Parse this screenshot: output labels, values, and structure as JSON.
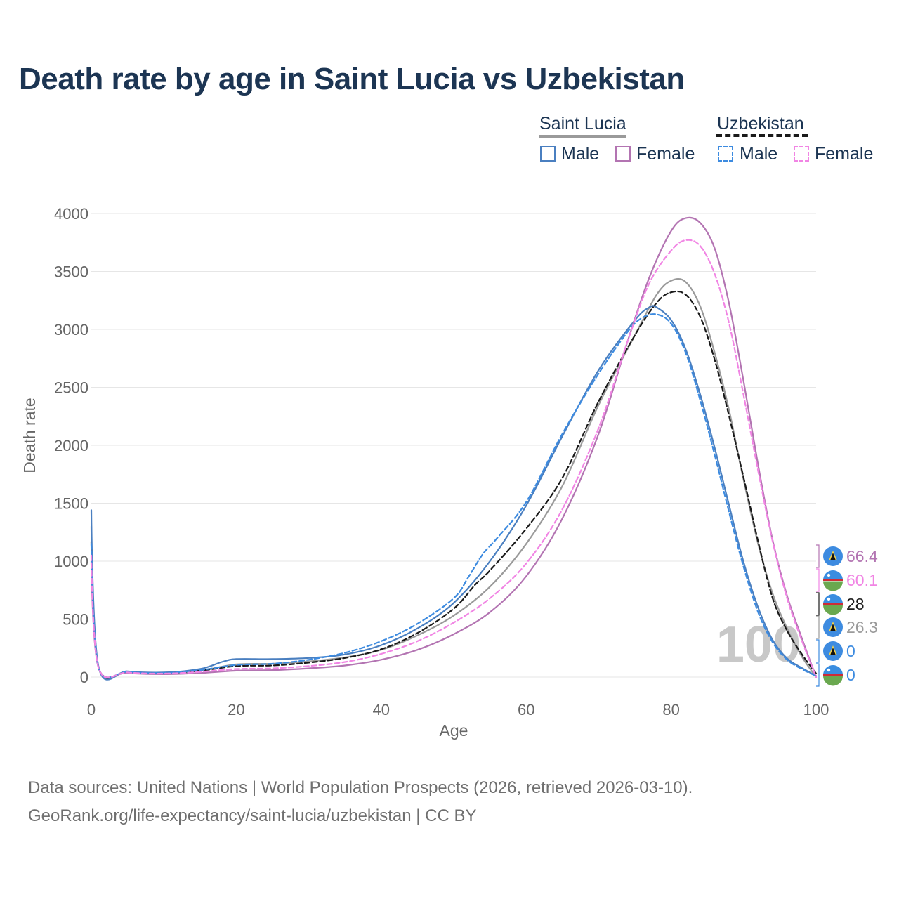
{
  "title": "Death rate by age in Saint Lucia vs Uzbekistan",
  "legend": {
    "countries": [
      "Saint Lucia",
      "Uzbekistan"
    ],
    "series_labels": [
      "Male",
      "Female",
      "Male",
      "Female"
    ]
  },
  "colors": {
    "saint_lucia_male": "#4a7fc0",
    "saint_lucia_female": "#b374b2",
    "uzbekistan_male": "#3d8be0",
    "uzbekistan_female": "#f185e4",
    "saint_lucia_total": "#9a9a9a",
    "uzbekistan_total": "#1a1a1a",
    "title": "#1c3553"
  },
  "chart_data": {
    "type": "line",
    "title": "Death rate by age in Saint Lucia vs Uzbekistan",
    "xlabel": "Age",
    "ylabel": "Death rate",
    "xlim": [
      0,
      100
    ],
    "ylim": [
      0,
      4000
    ],
    "x_ticks": [
      0,
      20,
      40,
      60,
      80,
      100
    ],
    "y_ticks": [
      0,
      500,
      1000,
      1500,
      2000,
      2500,
      3000,
      3500,
      4000
    ],
    "watermark": "100",
    "series": [
      {
        "key": "sl_total",
        "name": "Saint Lucia",
        "style": "solid",
        "color": "#9a9a9a",
        "points": [
          [
            0,
            1300
          ],
          [
            1,
            85
          ],
          [
            5,
            45
          ],
          [
            10,
            35
          ],
          [
            15,
            55
          ],
          [
            20,
            110
          ],
          [
            25,
            115
          ],
          [
            30,
            135
          ],
          [
            35,
            170
          ],
          [
            40,
            235
          ],
          [
            45,
            360
          ],
          [
            50,
            530
          ],
          [
            55,
            780
          ],
          [
            60,
            1150
          ],
          [
            65,
            1650
          ],
          [
            70,
            2350
          ],
          [
            75,
            2950
          ],
          [
            78,
            3300
          ],
          [
            80,
            3420
          ],
          [
            82,
            3410
          ],
          [
            84,
            3200
          ],
          [
            86,
            2800
          ],
          [
            88,
            2300
          ],
          [
            90,
            1700
          ],
          [
            92,
            1150
          ],
          [
            94,
            720
          ],
          [
            96,
            420
          ],
          [
            98,
            180
          ],
          [
            100,
            0
          ]
        ]
      },
      {
        "key": "uz_total",
        "name": "Uzbekistan",
        "style": "dashed",
        "color": "#1a1a1a",
        "points": [
          [
            0,
            1170
          ],
          [
            1,
            85
          ],
          [
            5,
            45
          ],
          [
            10,
            35
          ],
          [
            15,
            55
          ],
          [
            20,
            95
          ],
          [
            25,
            100
          ],
          [
            30,
            125
          ],
          [
            35,
            165
          ],
          [
            40,
            240
          ],
          [
            45,
            380
          ],
          [
            50,
            590
          ],
          [
            53,
            800
          ],
          [
            55,
            920
          ],
          [
            60,
            1280
          ],
          [
            65,
            1720
          ],
          [
            70,
            2380
          ],
          [
            75,
            2950
          ],
          [
            78,
            3230
          ],
          [
            80,
            3320
          ],
          [
            82,
            3300
          ],
          [
            84,
            3110
          ],
          [
            86,
            2740
          ],
          [
            88,
            2250
          ],
          [
            90,
            1720
          ],
          [
            92,
            1170
          ],
          [
            94,
            680
          ],
          [
            96,
            400
          ],
          [
            98,
            200
          ],
          [
            100,
            30
          ]
        ]
      },
      {
        "key": "sl_male",
        "name": "Male",
        "style": "solid",
        "color": "#4a7fc0",
        "points": [
          [
            0,
            1440
          ],
          [
            1,
            90
          ],
          [
            5,
            50
          ],
          [
            10,
            40
          ],
          [
            15,
            70
          ],
          [
            18,
            130
          ],
          [
            20,
            155
          ],
          [
            25,
            155
          ],
          [
            30,
            165
          ],
          [
            35,
            195
          ],
          [
            40,
            275
          ],
          [
            45,
            420
          ],
          [
            50,
            640
          ],
          [
            55,
            1000
          ],
          [
            60,
            1480
          ],
          [
            65,
            2080
          ],
          [
            70,
            2650
          ],
          [
            75,
            3080
          ],
          [
            77,
            3190
          ],
          [
            78,
            3190
          ],
          [
            80,
            3080
          ],
          [
            82,
            2830
          ],
          [
            84,
            2440
          ],
          [
            86,
            1980
          ],
          [
            88,
            1480
          ],
          [
            90,
            990
          ],
          [
            92,
            600
          ],
          [
            94,
            320
          ],
          [
            96,
            160
          ],
          [
            98,
            80
          ],
          [
            100,
            10
          ]
        ]
      },
      {
        "key": "sl_female",
        "name": "Female",
        "style": "solid",
        "color": "#b374b2",
        "points": [
          [
            0,
            1000
          ],
          [
            1,
            80
          ],
          [
            5,
            35
          ],
          [
            10,
            25
          ],
          [
            15,
            35
          ],
          [
            20,
            55
          ],
          [
            25,
            60
          ],
          [
            30,
            75
          ],
          [
            35,
            100
          ],
          [
            40,
            150
          ],
          [
            45,
            235
          ],
          [
            50,
            370
          ],
          [
            55,
            560
          ],
          [
            60,
            870
          ],
          [
            65,
            1370
          ],
          [
            70,
            2100
          ],
          [
            74,
            2900
          ],
          [
            77,
            3450
          ],
          [
            80,
            3850
          ],
          [
            82,
            3960
          ],
          [
            84,
            3920
          ],
          [
            86,
            3700
          ],
          [
            88,
            3220
          ],
          [
            90,
            2550
          ],
          [
            92,
            1830
          ],
          [
            94,
            1180
          ],
          [
            96,
            700
          ],
          [
            98,
            340
          ],
          [
            100,
            0
          ]
        ]
      },
      {
        "key": "uz_male",
        "name": "Male",
        "style": "dashed",
        "color": "#3d8be0",
        "points": [
          [
            0,
            1150
          ],
          [
            1,
            85
          ],
          [
            5,
            45
          ],
          [
            10,
            35
          ],
          [
            15,
            60
          ],
          [
            20,
            105
          ],
          [
            25,
            115
          ],
          [
            30,
            150
          ],
          [
            35,
            210
          ],
          [
            40,
            310
          ],
          [
            45,
            460
          ],
          [
            50,
            680
          ],
          [
            52,
            860
          ],
          [
            54,
            1060
          ],
          [
            56,
            1200
          ],
          [
            60,
            1510
          ],
          [
            65,
            2100
          ],
          [
            70,
            2620
          ],
          [
            74,
            2980
          ],
          [
            76,
            3100
          ],
          [
            78,
            3130
          ],
          [
            80,
            3050
          ],
          [
            82,
            2800
          ],
          [
            84,
            2390
          ],
          [
            86,
            1920
          ],
          [
            88,
            1420
          ],
          [
            90,
            950
          ],
          [
            92,
            560
          ],
          [
            94,
            300
          ],
          [
            96,
            150
          ],
          [
            98,
            70
          ],
          [
            100,
            10
          ]
        ]
      },
      {
        "key": "uz_female",
        "name": "Female",
        "style": "dashed",
        "color": "#f185e4",
        "points": [
          [
            0,
            1050
          ],
          [
            1,
            80
          ],
          [
            5,
            40
          ],
          [
            10,
            30
          ],
          [
            15,
            45
          ],
          [
            20,
            70
          ],
          [
            25,
            75
          ],
          [
            30,
            95
          ],
          [
            35,
            130
          ],
          [
            40,
            200
          ],
          [
            45,
            310
          ],
          [
            50,
            470
          ],
          [
            55,
            680
          ],
          [
            60,
            980
          ],
          [
            65,
            1450
          ],
          [
            70,
            2150
          ],
          [
            74,
            2900
          ],
          [
            77,
            3400
          ],
          [
            80,
            3680
          ],
          [
            82,
            3770
          ],
          [
            84,
            3720
          ],
          [
            86,
            3480
          ],
          [
            88,
            3050
          ],
          [
            90,
            2430
          ],
          [
            92,
            1780
          ],
          [
            94,
            1170
          ],
          [
            96,
            680
          ],
          [
            98,
            320
          ],
          [
            100,
            0
          ]
        ]
      }
    ],
    "end_labels": [
      {
        "text": "66.4",
        "color": "#b374b2",
        "flag": "saint-lucia"
      },
      {
        "text": "60.1",
        "color": "#f185e4",
        "flag": "uzbekistan"
      },
      {
        "text": "28",
        "color": "#1a1a1a",
        "flag": "uzbekistan"
      },
      {
        "text": "26.3",
        "color": "#9a9a9a",
        "flag": "saint-lucia"
      },
      {
        "text": "0",
        "color": "#3d8be0",
        "flag": "saint-lucia"
      },
      {
        "text": "0",
        "color": "#3d8be0",
        "flag": "uzbekistan"
      }
    ]
  },
  "footer": {
    "line1": "Data sources: United Nations | World Population Prospects (2026, retrieved 2026-03-10).",
    "line2": "GeoRank.org/life-expectancy/saint-lucia/uzbekistan | CC BY"
  }
}
